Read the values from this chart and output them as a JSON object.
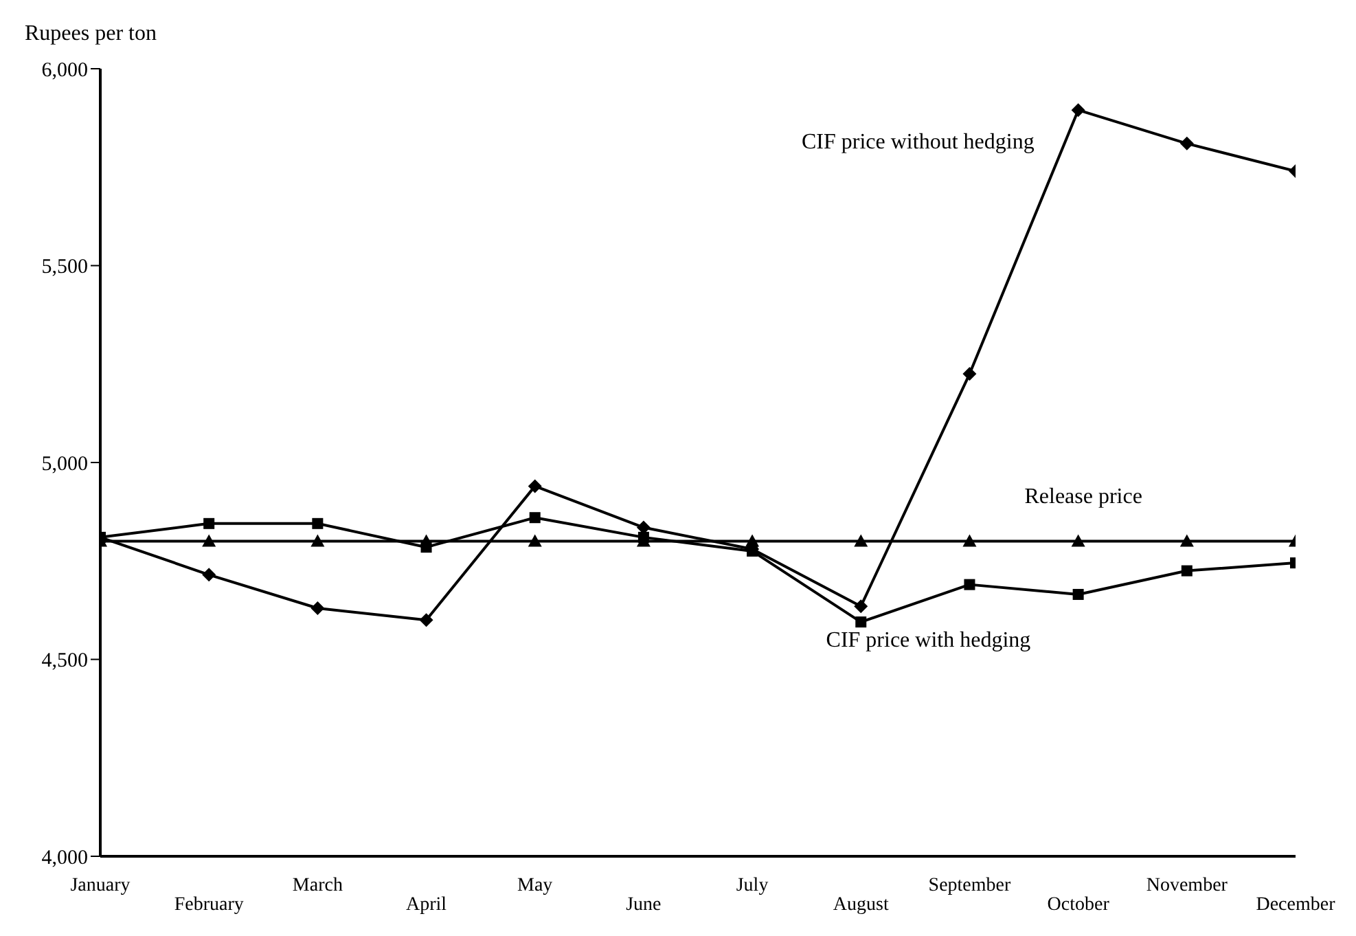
{
  "chart_data": {
    "type": "line",
    "ylabel": "Rupees per ton",
    "categories": [
      "January",
      "February",
      "March",
      "April",
      "May",
      "June",
      "July",
      "August",
      "September",
      "October",
      "November",
      "December"
    ],
    "series": [
      {
        "name": "CIF price without hedging",
        "color": "#000000",
        "marker": "diamond",
        "values": [
          4810,
          4715,
          4630,
          4600,
          4940,
          4835,
          4780,
          4635,
          5225,
          5895,
          5810,
          5740
        ]
      },
      {
        "name": "Release price",
        "color": "#000000",
        "marker": "triangle",
        "values": [
          4800,
          4800,
          4800,
          4800,
          4800,
          4800,
          4800,
          4800,
          4800,
          4800,
          4800,
          4800
        ]
      },
      {
        "name": "CIF price with hedging",
        "color": "#000000",
        "marker": "square",
        "values": [
          4810,
          4845,
          4845,
          4785,
          4860,
          4810,
          4775,
          4595,
          4690,
          4665,
          4725,
          4745
        ]
      }
    ],
    "ylim": [
      4000,
      6000
    ],
    "yticks": [
      {
        "value": 4000,
        "label": "4,000"
      },
      {
        "value": 4500,
        "label": "4,500"
      },
      {
        "value": 5000,
        "label": "5,000"
      },
      {
        "value": 5500,
        "label": "5,500"
      },
      {
        "value": 6000,
        "label": "6,000"
      }
    ],
    "line_style": "solid"
  }
}
